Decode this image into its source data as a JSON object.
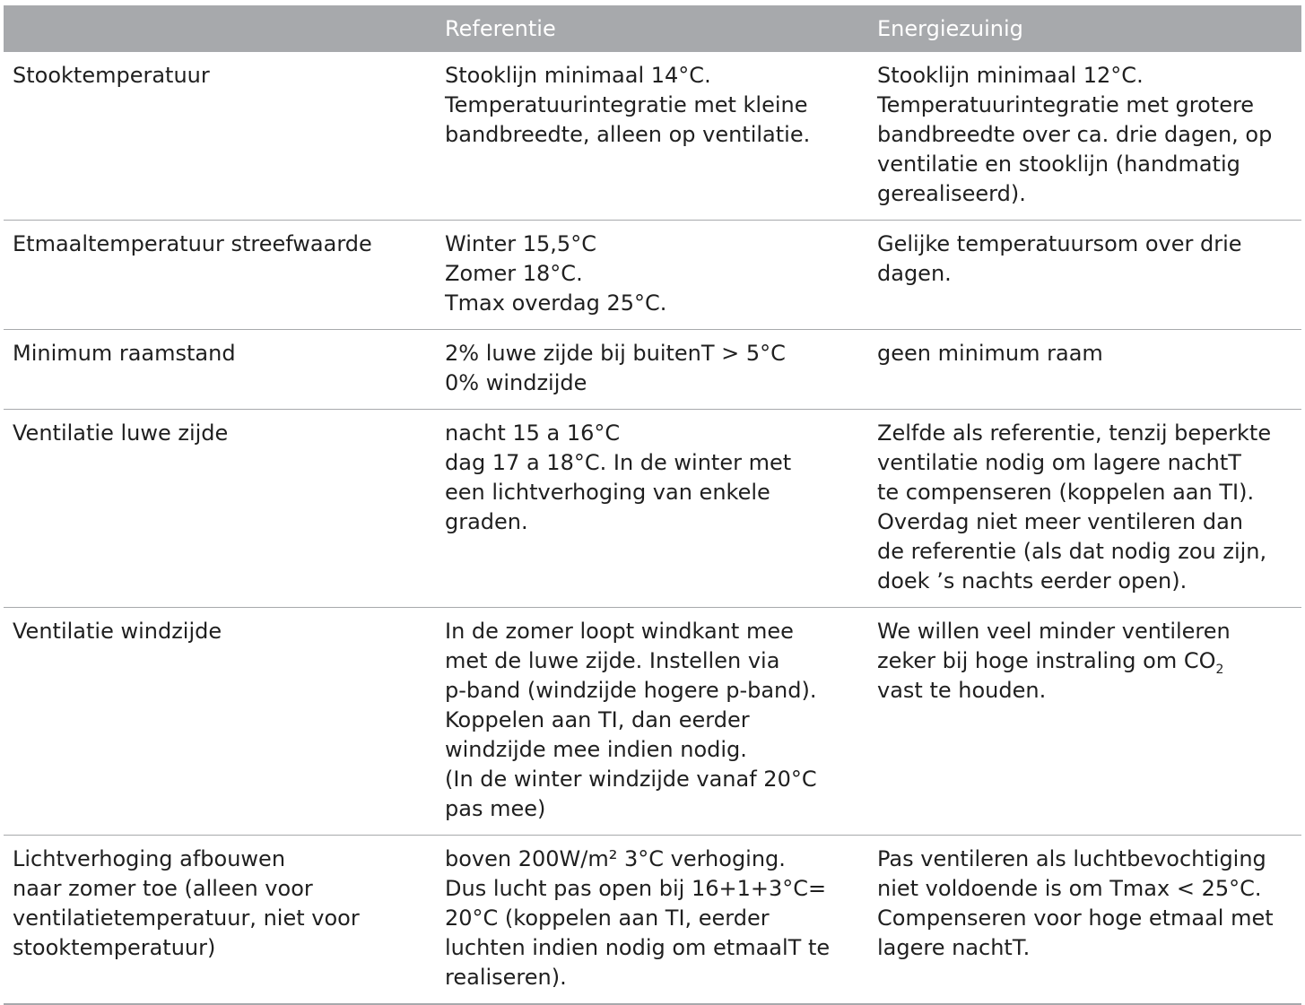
{
  "header": {
    "col1": "",
    "col2": "Referentie",
    "col3": "Energiezuinig"
  },
  "rows": [
    {
      "label": [
        "Stooktemperatuur"
      ],
      "referentie": [
        "Stooklijn minimaal 14°C.",
        "Temperatuurintegratie met kleine",
        "bandbreedte, alleen op ventilatie."
      ],
      "energiezuinig": [
        "Stooklijn minimaal 12°C.",
        "Temperatuurintegratie met grotere",
        "bandbreedte over ca. drie dagen, op",
        "ventilatie en stooklijn (handmatig",
        "gerealiseerd)."
      ]
    },
    {
      "label": [
        "Etmaaltemperatuur streefwaarde"
      ],
      "referentie": [
        "Winter 15,5°C",
        "Zomer 18°C.",
        "Tmax overdag 25°C."
      ],
      "energiezuinig": [
        "Gelijke temperatuursom over drie",
        "dagen."
      ]
    },
    {
      "label": [
        "Minimum raamstand"
      ],
      "referentie": [
        "2% luwe zijde bij buitenT > 5°C",
        "0% windzijde"
      ],
      "energiezuinig": [
        "geen minimum raam"
      ]
    },
    {
      "label": [
        "Ventilatie luwe zijde"
      ],
      "referentie": [
        "nacht 15 a 16°C",
        "dag 17 a 18°C. In de winter met",
        "een lichtverhoging van enkele",
        "graden."
      ],
      "energiezuinig": [
        "Zelfde als referentie, tenzij beperkte",
        "ventilatie nodig om lagere nachtT",
        "te compenseren (koppelen aan TI).",
        "Overdag niet meer ventileren dan",
        "de referentie (als dat nodig zou zijn,",
        "doek ’s nachts eerder open)."
      ]
    },
    {
      "label": [
        "Ventilatie windzijde"
      ],
      "referentie": [
        "In de zomer loopt windkant mee",
        "met de luwe zijde. Instellen via",
        "p-band (windzijde hogere p-band).",
        "Koppelen aan TI, dan eerder",
        "windzijde mee indien nodig.",
        "(In de winter windzijde vanaf 20°C",
        "pas mee)"
      ],
      "energiezuinig": [
        "We willen veel minder ventileren",
        "zeker bij hoge instraling om CO",
        "vast te houden."
      ],
      "energiezuinig_sub": "2"
    },
    {
      "label": [
        "Lichtverhoging afbouwen",
        "naar zomer toe (alleen voor",
        "ventilatietemperatuur, niet voor",
        "stooktemperatuur)"
      ],
      "referentie": [
        "boven 200W/m² 3°C verhoging.",
        "Dus lucht pas open bij 16+1+3°C=",
        "20°C (koppelen aan TI, eerder",
        "luchten indien nodig om etmaalT te",
        "realiseren)."
      ],
      "energiezuinig": [
        "Pas ventileren als luchtbevochtiging",
        "niet voldoende is om Tmax < 25°C.",
        "Compenseren voor hoge etmaal met",
        "lagere nachtT."
      ]
    }
  ]
}
